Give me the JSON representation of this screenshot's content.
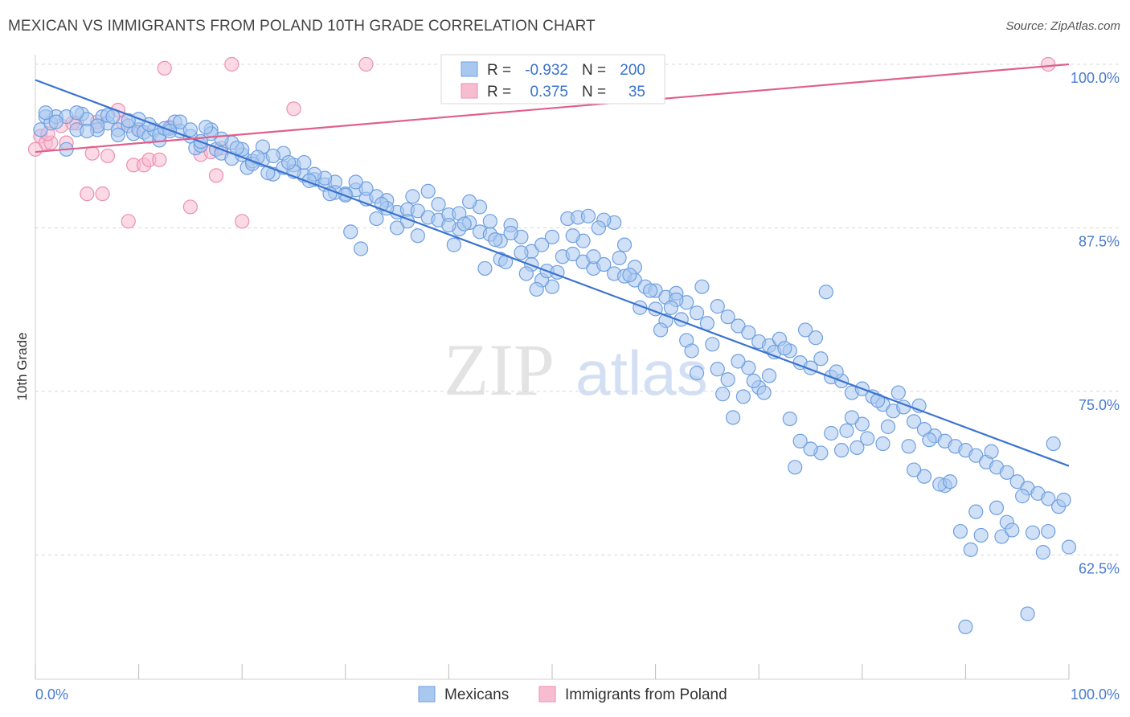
{
  "title": "MEXICAN VS IMMIGRANTS FROM POLAND 10TH GRADE CORRELATION CHART",
  "source": "Source: ZipAtlas.com",
  "watermark": {
    "zip": "ZIP",
    "atlas": "atlas"
  },
  "colors": {
    "blue_fill": "#a9c8f0",
    "blue_stroke": "#6f9fe0",
    "blue_line": "#3a73d0",
    "pink_fill": "#f7bcd0",
    "pink_stroke": "#ec8fb0",
    "pink_line": "#e0608a",
    "axis_text": "#4a7bd0",
    "grid": "#d8d8d8"
  },
  "legend_box": {
    "rows": [
      {
        "r_label": "R =",
        "r_value": "-0.932",
        "n_label": "N =",
        "n_value": "200"
      },
      {
        "r_label": "R =",
        "r_value": "0.375",
        "n_label": "N =",
        "n_value": "35"
      }
    ]
  },
  "bottom_legend": {
    "items": [
      "Mexicans",
      "Immigrants from Poland"
    ]
  },
  "chart_data": {
    "type": "scatter",
    "title": "MEXICAN VS IMMIGRANTS FROM POLAND 10TH GRADE CORRELATION CHART",
    "xlabel": "",
    "ylabel": "10th Grade",
    "xlim": [
      0,
      100
    ],
    "ylim": [
      53,
      100
    ],
    "x_tick_labels": [
      "0.0%",
      "100.0%"
    ],
    "y_ticks": [
      62.5,
      75.0,
      87.5,
      100.0
    ],
    "y_tick_labels": [
      "62.5%",
      "75.0%",
      "87.5%",
      "100.0%"
    ],
    "grid": "horizontal dashed",
    "legend": "top-center",
    "series": [
      {
        "name": "Mexicans",
        "R": -0.932,
        "N": 200,
        "trend": [
          [
            0,
            98.8
          ],
          [
            100,
            69.3
          ]
        ],
        "points": [
          [
            0.5,
            95.0
          ],
          [
            1,
            96
          ],
          [
            1.5,
            95.5
          ],
          [
            2,
            96
          ],
          [
            3,
            96
          ],
          [
            4,
            95
          ],
          [
            4.5,
            96.2
          ],
          [
            5,
            95.8
          ],
          [
            6,
            95
          ],
          [
            6.5,
            96
          ],
          [
            7,
            95.5
          ],
          [
            8,
            95
          ],
          [
            9,
            95.3
          ],
          [
            9.5,
            94.7
          ],
          [
            10,
            95
          ],
          [
            10.5,
            94.8
          ],
          [
            11,
            94.5
          ],
          [
            11.5,
            95
          ],
          [
            12,
            94.2
          ],
          [
            13,
            95.1
          ],
          [
            13.5,
            95.6
          ],
          [
            14,
            94.9
          ],
          [
            15,
            94.5
          ],
          [
            15.5,
            93.6
          ],
          [
            16,
            93.8
          ],
          [
            17,
            95
          ],
          [
            17.5,
            93.5
          ],
          [
            18,
            93.2
          ],
          [
            19,
            92.8
          ],
          [
            20,
            93.1
          ],
          [
            20.5,
            92.1
          ],
          [
            21,
            92.6
          ],
          [
            22,
            92.7
          ],
          [
            23,
            91.6
          ],
          [
            24,
            92.1
          ],
          [
            25,
            92.3
          ],
          [
            26,
            91.5
          ],
          [
            27,
            91.2
          ],
          [
            28,
            90.8
          ],
          [
            29,
            91
          ],
          [
            30,
            90.1
          ],
          [
            31,
            90.4
          ],
          [
            32,
            89.7
          ],
          [
            33,
            89.9
          ],
          [
            34,
            89.6
          ],
          [
            35,
            88.7
          ],
          [
            36,
            88.9
          ],
          [
            37,
            88.8
          ],
          [
            38,
            88.3
          ],
          [
            39,
            88.1
          ],
          [
            40,
            88.5
          ],
          [
            41,
            87.4
          ],
          [
            42,
            87.9
          ],
          [
            43,
            87.2
          ],
          [
            44,
            87.0
          ],
          [
            45,
            86.5
          ],
          [
            46,
            87.7
          ],
          [
            47,
            86.8
          ],
          [
            48,
            85.7
          ],
          [
            49,
            86.2
          ],
          [
            50,
            86.8
          ],
          [
            51,
            85.3
          ],
          [
            52,
            85.5
          ],
          [
            53,
            84.9
          ],
          [
            54,
            84.4
          ],
          [
            55,
            84.7
          ],
          [
            56,
            84.0
          ],
          [
            57,
            83.8
          ],
          [
            58,
            83.5
          ],
          [
            59,
            83.0
          ],
          [
            60,
            82.7
          ],
          [
            61,
            82.2
          ],
          [
            62,
            82.5
          ],
          [
            63,
            81.8
          ],
          [
            64,
            81.0
          ],
          [
            65,
            80.2
          ],
          [
            66,
            81.5
          ],
          [
            67,
            80.7
          ],
          [
            68,
            80.0
          ],
          [
            69,
            79.5
          ],
          [
            70,
            78.8
          ],
          [
            71,
            78.5
          ],
          [
            72,
            79.0
          ],
          [
            73,
            78.1
          ],
          [
            74,
            77.2
          ],
          [
            75,
            76.8
          ],
          [
            76,
            77.5
          ],
          [
            77,
            76.1
          ],
          [
            78,
            75.8
          ],
          [
            79,
            74.9
          ],
          [
            80,
            75.2
          ],
          [
            81,
            74.6
          ],
          [
            82,
            74.0
          ],
          [
            83,
            73.5
          ],
          [
            84,
            73.8
          ],
          [
            85,
            72.7
          ],
          [
            86,
            72.1
          ],
          [
            87,
            71.6
          ],
          [
            88,
            71.2
          ],
          [
            89,
            70.8
          ],
          [
            90,
            70.5
          ],
          [
            91,
            70.1
          ],
          [
            92,
            69.6
          ],
          [
            93,
            69.2
          ],
          [
            94,
            68.8
          ],
          [
            95,
            68.1
          ],
          [
            96,
            67.6
          ],
          [
            97,
            67.2
          ],
          [
            98,
            66.8
          ],
          [
            99,
            66.2
          ],
          [
            100,
            63.1
          ],
          [
            98,
            64.3
          ],
          [
            96,
            58.0
          ],
          [
            90,
            57.0
          ],
          [
            91,
            65.8
          ],
          [
            94,
            65.0
          ],
          [
            93,
            66.1
          ],
          [
            88,
            67.8
          ],
          [
            86,
            68.5
          ],
          [
            85,
            69.0
          ],
          [
            82,
            71.0
          ],
          [
            80,
            72.5
          ],
          [
            79,
            73.0
          ],
          [
            78,
            70.5
          ],
          [
            77,
            71.8
          ],
          [
            76,
            70.3
          ],
          [
            75,
            70.6
          ],
          [
            74,
            71.2
          ],
          [
            73,
            72.9
          ],
          [
            71,
            76.2
          ],
          [
            70,
            75.3
          ],
          [
            69,
            76.8
          ],
          [
            68,
            77.3
          ],
          [
            67,
            75.9
          ],
          [
            66,
            76.7
          ],
          [
            64,
            76.4
          ],
          [
            63,
            78.9
          ],
          [
            62,
            82.0
          ],
          [
            61,
            80.4
          ],
          [
            60,
            81.3
          ],
          [
            58,
            84.5
          ],
          [
            57,
            86.2
          ],
          [
            56,
            87.9
          ],
          [
            55,
            88.1
          ],
          [
            54,
            85.3
          ],
          [
            53,
            86.5
          ],
          [
            52,
            86.9
          ],
          [
            50,
            83.0
          ],
          [
            49,
            83.5
          ],
          [
            48,
            84.7
          ],
          [
            47,
            85.6
          ],
          [
            46,
            87.1
          ],
          [
            45,
            85.1
          ],
          [
            44,
            88.0
          ],
          [
            43,
            89.1
          ],
          [
            42,
            89.5
          ],
          [
            41,
            88.6
          ],
          [
            40,
            87.7
          ],
          [
            39,
            89.3
          ],
          [
            38,
            90.3
          ],
          [
            37,
            86.9
          ],
          [
            36,
            88.0
          ],
          [
            35,
            87.5
          ],
          [
            34,
            89.0
          ],
          [
            33,
            88.2
          ],
          [
            32,
            90.5
          ],
          [
            31,
            91.0
          ],
          [
            30,
            90.0
          ],
          [
            29,
            90.2
          ],
          [
            28,
            91.3
          ],
          [
            27,
            91.6
          ],
          [
            26,
            92.5
          ],
          [
            25,
            91.8
          ],
          [
            24,
            93.2
          ],
          [
            23,
            93.0
          ],
          [
            22,
            93.7
          ],
          [
            21,
            92.4
          ],
          [
            20,
            93.5
          ],
          [
            19,
            94.0
          ],
          [
            18,
            94.3
          ],
          [
            17,
            94.7
          ],
          [
            16,
            94.1
          ],
          [
            15,
            95.0
          ],
          [
            14,
            95.6
          ],
          [
            12,
            94.6
          ],
          [
            11,
            95.4
          ],
          [
            10,
            95.8
          ],
          [
            8,
            94.6
          ],
          [
            7,
            96.1
          ],
          [
            6,
            95.3
          ],
          [
            5,
            94.9
          ],
          [
            4,
            96.3
          ],
          [
            3,
            93.5
          ],
          [
            2,
            95.6
          ],
          [
            1,
            96.3
          ],
          [
            7.5,
            96.0
          ],
          [
            9,
            95.7
          ],
          [
            12.5,
            95.1
          ],
          [
            13,
            94.9
          ],
          [
            16.5,
            95.2
          ],
          [
            19.5,
            93.6
          ],
          [
            21.5,
            92.9
          ],
          [
            22.5,
            91.7
          ],
          [
            24.5,
            92.5
          ],
          [
            26.5,
            91.1
          ],
          [
            28.5,
            90.1
          ],
          [
            30.5,
            87.2
          ],
          [
            31.5,
            85.9
          ],
          [
            33.5,
            89.3
          ],
          [
            36.5,
            89.9
          ],
          [
            40.5,
            86.2
          ],
          [
            41.5,
            87.8
          ],
          [
            43.5,
            84.4
          ],
          [
            44.5,
            86.6
          ],
          [
            45.5,
            84.9
          ],
          [
            47.5,
            84.0
          ],
          [
            48.5,
            82.8
          ],
          [
            49.5,
            84.2
          ],
          [
            50.5,
            84.1
          ],
          [
            51.5,
            88.2
          ],
          [
            52.5,
            88.3
          ],
          [
            53.5,
            88.4
          ],
          [
            54.5,
            87.5
          ],
          [
            56.5,
            85.2
          ],
          [
            57.5,
            83.9
          ],
          [
            58.5,
            81.4
          ],
          [
            59.5,
            82.7
          ],
          [
            60.5,
            79.7
          ],
          [
            61.5,
            81.4
          ],
          [
            62.5,
            80.5
          ],
          [
            63.5,
            78.1
          ],
          [
            64.5,
            83.0
          ],
          [
            65.5,
            78.6
          ],
          [
            66.5,
            74.8
          ],
          [
            67.5,
            73.0
          ],
          [
            68.5,
            74.6
          ],
          [
            69.5,
            75.8
          ],
          [
            70.5,
            74.9
          ],
          [
            71.5,
            78.0
          ],
          [
            72.5,
            78.3
          ],
          [
            73.5,
            69.2
          ],
          [
            74.5,
            79.7
          ],
          [
            75.5,
            79.1
          ],
          [
            76.5,
            82.6
          ],
          [
            77.5,
            76.5
          ],
          [
            78.5,
            72.0
          ],
          [
            79.5,
            70.7
          ],
          [
            80.5,
            71.4
          ],
          [
            81.5,
            74.3
          ],
          [
            82.5,
            72.3
          ],
          [
            83.5,
            74.9
          ],
          [
            84.5,
            70.8
          ],
          [
            85.5,
            73.9
          ],
          [
            86.5,
            71.3
          ],
          [
            87.5,
            67.9
          ],
          [
            88.5,
            68.1
          ],
          [
            89.5,
            64.3
          ],
          [
            90.5,
            62.9
          ],
          [
            91.5,
            64.0
          ],
          [
            92.5,
            70.4
          ],
          [
            93.5,
            63.9
          ],
          [
            94.5,
            64.4
          ],
          [
            95.5,
            67.0
          ],
          [
            96.5,
            64.2
          ],
          [
            97.5,
            62.7
          ],
          [
            98.5,
            71.0
          ],
          [
            99.5,
            66.7
          ]
        ]
      },
      {
        "name": "Immigrants from Poland",
        "R": 0.375,
        "N": 35,
        "trend": [
          [
            0,
            93.3
          ],
          [
            100,
            100.0
          ]
        ],
        "points": [
          [
            0.5,
            94.5
          ],
          [
            1,
            94.0
          ],
          [
            1.5,
            94.0
          ],
          [
            2.5,
            95.3
          ],
          [
            3,
            94.0
          ],
          [
            4,
            95.5
          ],
          [
            5,
            90.1
          ],
          [
            5.5,
            93.2
          ],
          [
            6.5,
            90.1
          ],
          [
            7,
            93.0
          ],
          [
            8,
            96.5
          ],
          [
            8.5,
            95.5
          ],
          [
            9,
            88.0
          ],
          [
            9.5,
            92.3
          ],
          [
            10,
            95.0
          ],
          [
            10.5,
            92.3
          ],
          [
            11,
            92.7
          ],
          [
            12,
            92.7
          ],
          [
            12.5,
            99.7
          ],
          [
            13,
            95.2
          ],
          [
            15,
            89.1
          ],
          [
            16,
            93.1
          ],
          [
            17,
            93.3
          ],
          [
            17.5,
            91.5
          ],
          [
            18,
            93.6
          ],
          [
            19,
            100.0
          ],
          [
            20,
            88.0
          ],
          [
            25,
            96.6
          ],
          [
            32,
            100.0
          ],
          [
            43,
            100.0
          ],
          [
            98,
            100.0
          ],
          [
            0,
            93.5
          ],
          [
            1.2,
            94.7
          ],
          [
            3.6,
            95.5
          ],
          [
            6,
            95.6
          ]
        ]
      }
    ]
  }
}
